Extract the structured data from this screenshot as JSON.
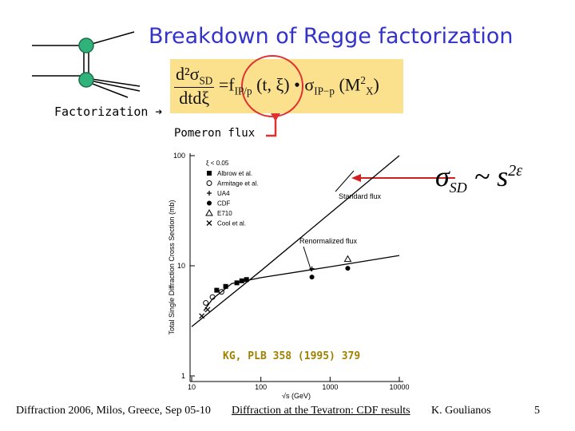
{
  "title": "Breakdown of Regge factorization",
  "factorization_label": "Factorization ➔",
  "pomeron_flux_label": "Pomeron flux",
  "formula": {
    "lhs_numerator": "d²σ",
    "lhs_numerator_sub": "SD",
    "lhs_denominator": "dtdξ",
    "equals": "=",
    "flux": "f",
    "flux_sub": "IP/p",
    "flux_args": "(t, ξ)",
    "dot": "•",
    "sigma": "σ",
    "sigma_sub": "IP−p",
    "sigma_args_open": "(M",
    "sigma_args_sup": "2",
    "sigma_args_sub": "X",
    "sigma_args_close": ")"
  },
  "scaling": {
    "sigma": "σ",
    "sigma_sub": "SD",
    "sim": "~",
    "s": "s",
    "exponent": "2ε"
  },
  "reference": "KG, PLB 358 (1995) 379",
  "footer": {
    "conference": "Diffraction 2006, Milos, Greece, Sep 05-10",
    "talk": "Diffraction at the Tevatron: CDF results",
    "author": "K. Goulianos",
    "page": "5"
  },
  "chart_data": {
    "type": "line",
    "x_label": "√s (GeV)",
    "y_label": "Total Single Diffraction Cross Section (mb)",
    "xscale": "log",
    "yscale": "log",
    "xlim": [
      10,
      10000
    ],
    "ylim": [
      1,
      100
    ],
    "xticks": [
      10,
      100,
      1000,
      10000
    ],
    "yticks": [
      1,
      10,
      100
    ],
    "legend_title": "ξ < 0.05",
    "series": [
      {
        "name": "Albrow et al.",
        "marker": "square",
        "color": "#000000",
        "x": [
          23,
          31,
          45,
          53,
          62
        ],
        "values": [
          6,
          6.5,
          7,
          7.3,
          7.5
        ]
      },
      {
        "name": "Armitage et al.",
        "marker": "circle-open",
        "color": "#000000",
        "x": [
          16,
          20,
          27
        ],
        "values": [
          4.6,
          5.2,
          5.8
        ]
      },
      {
        "name": "UA4",
        "marker": "plus",
        "color": "#000000",
        "x": [
          546
        ],
        "values": [
          9.4
        ]
      },
      {
        "name": "CDF",
        "marker": "circle",
        "color": "#000000",
        "x": [
          546,
          1800
        ],
        "values": [
          7.9,
          9.5
        ]
      },
      {
        "name": "E710",
        "marker": "triangle-open",
        "color": "#000000",
        "x": [
          1800
        ],
        "values": [
          11.5
        ]
      },
      {
        "name": "Cool et al.",
        "marker": "x",
        "color": "#000000",
        "x": [
          14,
          17
        ],
        "values": [
          3.5,
          4
        ]
      },
      {
        "name": "Standard flux",
        "style": "line",
        "color": "#000000",
        "x": [
          10,
          100,
          1000,
          10000
        ],
        "values": [
          2.8,
          9,
          30,
          100
        ]
      },
      {
        "name": "Renormalized flux",
        "style": "line",
        "color": "#000000",
        "x": [
          15,
          20,
          38,
          100,
          1000,
          10000
        ],
        "values": [
          3.9,
          5,
          6.9,
          7.8,
          9.8,
          12.4
        ]
      }
    ]
  }
}
